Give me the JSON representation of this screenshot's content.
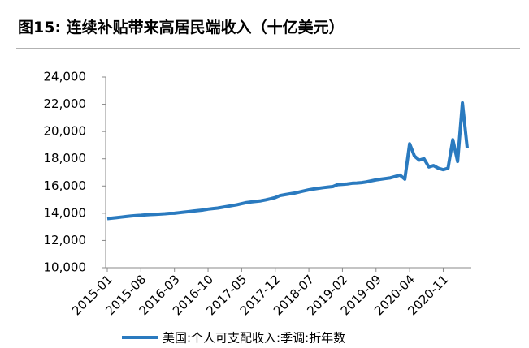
{
  "chart_data": {
    "type": "line",
    "title": "图15: 连续补贴带来高居民端收入（十亿美元）",
    "categories": [
      "2015-01",
      null,
      null,
      null,
      null,
      null,
      null,
      "2015-08",
      null,
      null,
      null,
      null,
      null,
      null,
      "2016-03",
      null,
      null,
      null,
      null,
      null,
      null,
      "2016-10",
      null,
      null,
      null,
      null,
      null,
      null,
      "2017-05",
      null,
      null,
      null,
      null,
      null,
      null,
      "2017-12",
      null,
      null,
      null,
      null,
      null,
      null,
      "2018-07",
      null,
      null,
      null,
      null,
      null,
      null,
      "2019-02",
      null,
      null,
      null,
      null,
      null,
      null,
      "2019-09",
      null,
      null,
      null,
      null,
      null,
      null,
      "2020-04",
      null,
      null,
      null,
      null,
      null,
      null,
      "2020-11",
      null,
      null,
      null,
      null,
      null
    ],
    "series": [
      {
        "name": "美国:个人可支配收入:季调:折年数",
        "color": "#2a7abf",
        "values": [
          13600,
          13640,
          13680,
          13720,
          13760,
          13800,
          13830,
          13850,
          13880,
          13900,
          13920,
          13940,
          13960,
          13990,
          14000,
          14040,
          14080,
          14120,
          14160,
          14200,
          14240,
          14300,
          14340,
          14380,
          14440,
          14500,
          14560,
          14620,
          14700,
          14780,
          14830,
          14870,
          14910,
          14980,
          15060,
          15150,
          15300,
          15360,
          15420,
          15480,
          15560,
          15640,
          15720,
          15780,
          15830,
          15880,
          15920,
          15960,
          16100,
          16120,
          16150,
          16200,
          16220,
          16250,
          16300,
          16380,
          16450,
          16500,
          16550,
          16600,
          16700,
          16800,
          16500,
          19100,
          18200,
          17900,
          18000,
          17400,
          17500,
          17300,
          17200,
          17300,
          19400,
          17800,
          22100,
          18800
        ]
      }
    ],
    "ylim": [
      10000,
      24000
    ],
    "yticks": [
      {
        "value": 10000,
        "label": "10,000"
      },
      {
        "value": 12000,
        "label": "12,000"
      },
      {
        "value": 14000,
        "label": "14,000"
      },
      {
        "value": 16000,
        "label": "16,000"
      },
      {
        "value": 18000,
        "label": "18,000"
      },
      {
        "value": 20000,
        "label": "20,000"
      },
      {
        "value": 22000,
        "label": "22,000"
      },
      {
        "value": 24000,
        "label": "24,000"
      }
    ],
    "grid": false
  }
}
